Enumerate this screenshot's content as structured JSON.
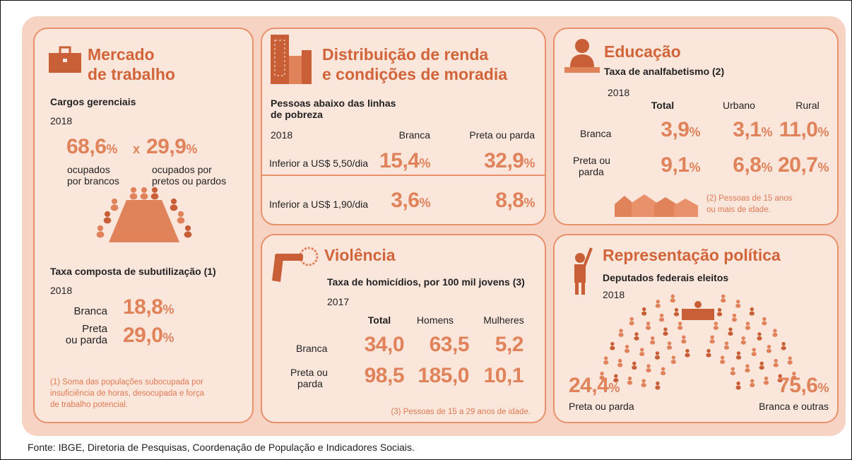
{
  "mercado": {
    "title": [
      "Mercado",
      "de trabalho"
    ],
    "cargos_label": "Cargos gerenciais",
    "cargos_year": "2018",
    "brancos": {
      "num": "68,6",
      "unit": "%",
      "caption": [
        "ocupados",
        "por brancos"
      ]
    },
    "times": "x",
    "pretos": {
      "num": "29,9",
      "unit": "%",
      "caption": [
        "ocupados por",
        "pretos ou pardos"
      ]
    },
    "sub_label": "Taxa composta de subutilização (1)",
    "sub_year": "2018",
    "sub_rows": [
      {
        "label": [
          "Branca"
        ],
        "num": "18,8",
        "unit": "%"
      },
      {
        "label": [
          "Preta",
          "ou parda"
        ],
        "num": "29,0",
        "unit": "%"
      }
    ],
    "note": [
      "(1) Soma das populações subocupada por",
      "insuficiência de horas, desocupada e força",
      "de trabalho potencial."
    ]
  },
  "renda": {
    "title": [
      "Distribuição de renda",
      "e condições de moradia"
    ],
    "subtitle": [
      "Pessoas abaixo das linhas",
      "de pobreza"
    ],
    "year": "2018",
    "columns": [
      "Branca",
      "Preta ou parda"
    ],
    "rows": [
      {
        "label": "Inferior a US$ 5,50/dia",
        "cells": [
          {
            "num": "15,4",
            "unit": "%"
          },
          {
            "num": "32,9",
            "unit": "%"
          }
        ]
      },
      {
        "label": "Inferior a US$ 1,90/dia",
        "cells": [
          {
            "num": "3,6",
            "unit": "%"
          },
          {
            "num": "8,8",
            "unit": "%"
          }
        ]
      }
    ]
  },
  "educacao": {
    "title": "Educação",
    "subtitle": "Taxa de analfabetismo (2)",
    "year": "2018",
    "columns": [
      "Total",
      "Urbano",
      "Rural"
    ],
    "rows": [
      {
        "label": [
          "Branca"
        ],
        "cells": [
          {
            "num": "3,9",
            "unit": "%"
          },
          {
            "num": "3,1",
            "unit": "%"
          },
          {
            "num": "11,0",
            "unit": "%"
          }
        ]
      },
      {
        "label": [
          "Preta ou",
          "parda"
        ],
        "cells": [
          {
            "num": "9,1",
            "unit": "%"
          },
          {
            "num": "6,8",
            "unit": "%"
          },
          {
            "num": "20,7",
            "unit": "%"
          }
        ]
      }
    ],
    "note": [
      "(2) Pessoas de 15 anos",
      "ou mais de idade."
    ]
  },
  "violencia": {
    "title": "Violência",
    "subtitle": "Taxa de homicídios, por 100 mil jovens (3)",
    "year": "2017",
    "columns": [
      "Total",
      "Homens",
      "Mulheres"
    ],
    "rows": [
      {
        "label": [
          "Branca"
        ],
        "cells": [
          "34,0",
          "63,5",
          "5,2"
        ]
      },
      {
        "label": [
          "Preta ou",
          "parda"
        ],
        "cells": [
          "98,5",
          "185,0",
          "10,1"
        ]
      }
    ],
    "note": "(3) Pessoas de 15 a 29 anos de idade."
  },
  "representacao": {
    "title": "Representação política",
    "subtitle": "Deputados federais eleitos",
    "year": "2018",
    "left": {
      "num": "24,4",
      "unit": "%",
      "label": "Preta ou parda"
    },
    "right": {
      "num": "75,6",
      "unit": "%",
      "label": "Branca e outras"
    }
  },
  "source": "Fonte: IBGE, Diretoria de Pesquisas, Coordenação de População e Indicadores Sociais."
}
